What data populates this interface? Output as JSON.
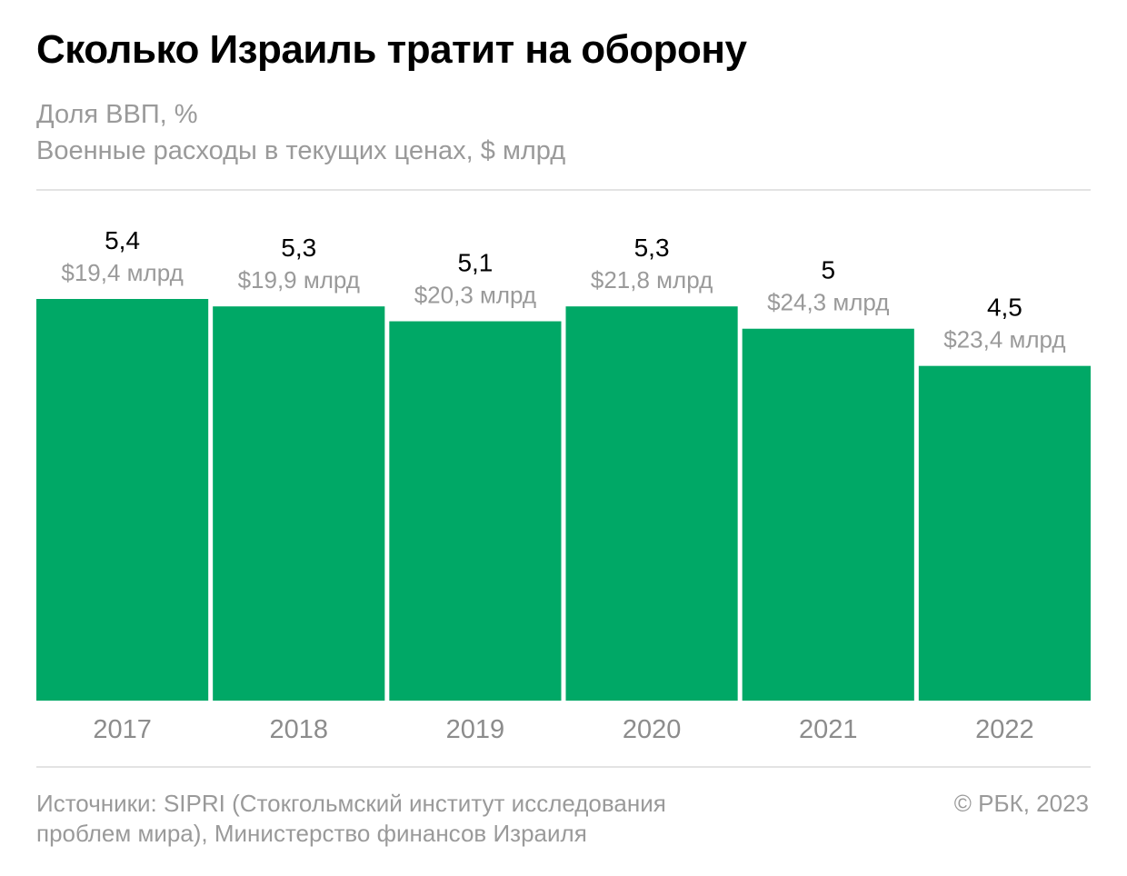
{
  "header": {
    "title": "Сколько Израиль тратит на оборону",
    "subtitle_line1": "Доля ВВП, %",
    "subtitle_line2": "Военные расходы в текущих ценах, $ млрд"
  },
  "footer": {
    "source_line1": "Источники: SIPRI (Стокгольмский институт исследования",
    "source_line2": "проблем мира), Министерство финансов Израиля",
    "copyright": "© РБК, 2023"
  },
  "colors": {
    "bar": "#00a866",
    "primary_label": "#000000",
    "secondary_label": "#9a9a9a",
    "axis_label": "#8c8c8c"
  },
  "chart_data": {
    "type": "bar",
    "categories": [
      "2017",
      "2018",
      "2019",
      "2020",
      "2021",
      "2022"
    ],
    "series": [
      {
        "name": "Доля ВВП, %",
        "values": [
          5.4,
          5.3,
          5.1,
          5.3,
          5.0,
          4.5
        ],
        "labels": [
          "5,4",
          "5,3",
          "5,1",
          "5,3",
          "5",
          "4,5"
        ]
      },
      {
        "name": "Военные расходы в текущих ценах, $ млрд",
        "values": [
          19.4,
          19.9,
          20.3,
          21.8,
          24.3,
          23.4
        ],
        "labels": [
          "$19,4 млрд",
          "$19,9 млрд",
          "$20,3 млрд",
          "$21,8 млрд",
          "$24,3 млрд",
          "$23,4 млрд"
        ]
      }
    ],
    "bar_height_series": "Доля ВВП, %",
    "ylim": [
      0,
      5.4
    ],
    "grid": false,
    "legend": "none"
  }
}
